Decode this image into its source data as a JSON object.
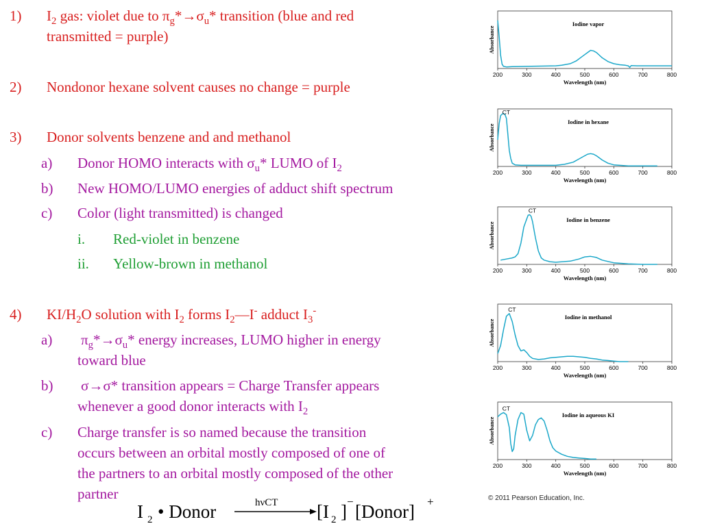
{
  "items": {
    "i1": {
      "num": "1)",
      "line1_pre": "I",
      "line1_sub": "2",
      "line1_a": " gas:  violet due to π",
      "line1_b": "g",
      "line1_c": "*→σ",
      "line1_d": "u",
      "line1_e": "* transition (blue and red",
      "line2": "transmitted = purple)"
    },
    "i2": {
      "num": "2)",
      "text": "Nondonor hexane solvent causes no change = purple"
    },
    "i3": {
      "num": "3)",
      "text": "Donor solvents benzene and and methanol",
      "a_num": "a)",
      "a_pre": "Donor HOMO interacts with σ",
      "a_sub": "u",
      "a_post": "* LUMO of I",
      "a_sub2": "2",
      "b_num": "b)",
      "b_text": "New HOMO/LUMO energies of adduct shift spectrum",
      "c_num": "c)",
      "c_text": "Color (light transmitted) is changed",
      "ci_num": "i.",
      "ci_text": "Red-violet in benzene",
      "cii_num": "ii.",
      "cii_text": "Yellow-brown in methanol"
    },
    "i4": {
      "num": "4)",
      "t1": "KI/H",
      "s1": "2",
      "t2": "O solution with I",
      "s2": "2",
      "t3": " forms I",
      "s3": "2",
      "t4": "—I",
      "p1": "-",
      "t5": " adduct I",
      "s4": "3",
      "p2": "-",
      "a_num": "a)",
      "a_t1": "π",
      "a_s1": "g",
      "a_t2": "*→σ",
      "a_s2": "u",
      "a_t3": "* energy increases, LUMO higher in energy",
      "a_line2": "toward blue",
      "b_num": "b)",
      "b_line1": "σ→σ* transition appears = Charge Transfer appears",
      "b_line2_pre": "whenever a good donor interacts with I",
      "b_line2_sub": "2",
      "c_num": "c)",
      "c_line1": "Charge transfer is so named because the transition",
      "c_line2": "occurs between an orbital mostly composed of one of",
      "c_line3": "the partners to an orbital mostly composed of the other",
      "c_line4": "partner"
    }
  },
  "equation": {
    "lhs_a": "I",
    "lhs_sub": "2",
    "lhs_b": "• Donor",
    "arrow_label": "hνCT",
    "rhs_a": "[I",
    "rhs_sub": "2",
    "rhs_b": "]",
    "rhs_sup": "−",
    "rhs_c": "[Donor]",
    "rhs_sup2": "+"
  },
  "copyright": "© 2011 Pearson Education, Inc.",
  "colors": {
    "red": "#d81e1e",
    "magenta": "#a3189f",
    "green": "#1e9e33",
    "spectrum": "#1aa7c9"
  },
  "chart_data": [
    {
      "type": "line",
      "title": "Iodine vapor",
      "xlabel": "Wavelength (nm)",
      "ylabel": "Absorbance",
      "xlim": [
        200,
        800
      ],
      "xticks": [
        200,
        300,
        400,
        500,
        600,
        700,
        800
      ],
      "yticks": [],
      "annotation": "",
      "series": [
        {
          "x": [
            200,
            205,
            210,
            215,
            220,
            230,
            250,
            300,
            350,
            400,
            420,
            450,
            470,
            490,
            500,
            510,
            520,
            530,
            540,
            550,
            560,
            580,
            600,
            620,
            640,
            650,
            655,
            660,
            680,
            700,
            750,
            800
          ],
          "y": [
            0.9,
            0.6,
            0.25,
            0.08,
            0.04,
            0.03,
            0.035,
            0.04,
            0.045,
            0.05,
            0.06,
            0.09,
            0.14,
            0.22,
            0.26,
            0.3,
            0.34,
            0.33,
            0.3,
            0.25,
            0.2,
            0.13,
            0.09,
            0.07,
            0.06,
            0.05,
            0.02,
            0.055,
            0.05,
            0.05,
            0.05,
            0.05
          ]
        }
      ]
    },
    {
      "type": "line",
      "title": "Iodine in hexane",
      "xlabel": "Wavelength (nm)",
      "ylabel": "Absorbance",
      "xlim": [
        200,
        800
      ],
      "xticks": [
        200,
        300,
        400,
        500,
        600,
        700,
        800
      ],
      "yticks": [],
      "annotation": "CT",
      "series": [
        {
          "x": [
            200,
            205,
            210,
            215,
            220,
            225,
            230,
            235,
            240,
            245,
            250,
            260,
            280,
            300,
            350,
            400,
            430,
            460,
            480,
            500,
            510,
            520,
            530,
            540,
            550,
            560,
            580,
            600,
            650,
            700,
            750
          ],
          "y": [
            0.5,
            0.8,
            0.95,
            0.98,
            0.99,
            0.97,
            0.9,
            0.6,
            0.3,
            0.15,
            0.06,
            0.03,
            0.02,
            0.02,
            0.02,
            0.02,
            0.04,
            0.08,
            0.14,
            0.2,
            0.23,
            0.24,
            0.23,
            0.2,
            0.16,
            0.12,
            0.06,
            0.03,
            0.01,
            0.01,
            0.01
          ]
        }
      ]
    },
    {
      "type": "line",
      "title": "Iodine in benzene",
      "xlabel": "Wavelength (nm)",
      "ylabel": "Absorbance",
      "xlim": [
        200,
        800
      ],
      "xticks": [
        200,
        300,
        400,
        500,
        600,
        700,
        800
      ],
      "yticks": [],
      "annotation": "CT",
      "series": [
        {
          "x": [
            210,
            230,
            250,
            260,
            270,
            280,
            290,
            300,
            305,
            310,
            315,
            320,
            330,
            340,
            350,
            360,
            380,
            400,
            450,
            480,
            500,
            520,
            540,
            560,
            600,
            650,
            700,
            750
          ],
          "y": [
            0.08,
            0.1,
            0.12,
            0.14,
            0.2,
            0.4,
            0.7,
            0.85,
            0.92,
            0.93,
            0.9,
            0.8,
            0.5,
            0.25,
            0.12,
            0.08,
            0.05,
            0.04,
            0.06,
            0.1,
            0.14,
            0.15,
            0.13,
            0.08,
            0.03,
            0.01,
            0.0,
            0.0
          ]
        }
      ]
    },
    {
      "type": "line",
      "title": "Iodine in methanol",
      "xlabel": "Wavelength (nm)",
      "ylabel": "Absorbance",
      "xlim": [
        200,
        800
      ],
      "xticks": [
        200,
        300,
        400,
        500,
        600,
        700,
        800
      ],
      "yticks": [],
      "annotation": "CT",
      "series": [
        {
          "x": [
            200,
            210,
            220,
            230,
            240,
            250,
            260,
            270,
            280,
            290,
            300,
            310,
            320,
            340,
            360,
            380,
            400,
            420,
            440,
            460,
            480,
            500,
            520,
            540,
            560,
            580,
            600,
            620,
            650
          ],
          "y": [
            0.15,
            0.3,
            0.6,
            0.85,
            0.9,
            0.75,
            0.5,
            0.3,
            0.2,
            0.22,
            0.17,
            0.1,
            0.06,
            0.04,
            0.05,
            0.07,
            0.08,
            0.09,
            0.1,
            0.1,
            0.09,
            0.08,
            0.06,
            0.05,
            0.03,
            0.02,
            0.01,
            0.0,
            0.0
          ]
        }
      ]
    },
    {
      "type": "line",
      "title": "Iodine in aqueous KI",
      "xlabel": "Wavelength (nm)",
      "ylabel": "Absorbance",
      "xlim": [
        200,
        800
      ],
      "xticks": [
        200,
        300,
        400,
        500,
        600,
        700,
        800
      ],
      "yticks": [],
      "annotation": "CT",
      "series": [
        {
          "x": [
            200,
            210,
            220,
            230,
            240,
            245,
            250,
            255,
            260,
            270,
            280,
            290,
            300,
            310,
            320,
            330,
            340,
            350,
            360,
            370,
            380,
            390,
            400,
            420,
            440,
            460,
            480,
            500,
            520,
            540
          ],
          "y": [
            0.8,
            0.85,
            0.88,
            0.84,
            0.6,
            0.3,
            0.15,
            0.2,
            0.45,
            0.75,
            0.88,
            0.85,
            0.55,
            0.35,
            0.45,
            0.65,
            0.75,
            0.78,
            0.72,
            0.55,
            0.35,
            0.22,
            0.16,
            0.1,
            0.06,
            0.04,
            0.03,
            0.02,
            0.01,
            0.01
          ]
        }
      ]
    }
  ]
}
